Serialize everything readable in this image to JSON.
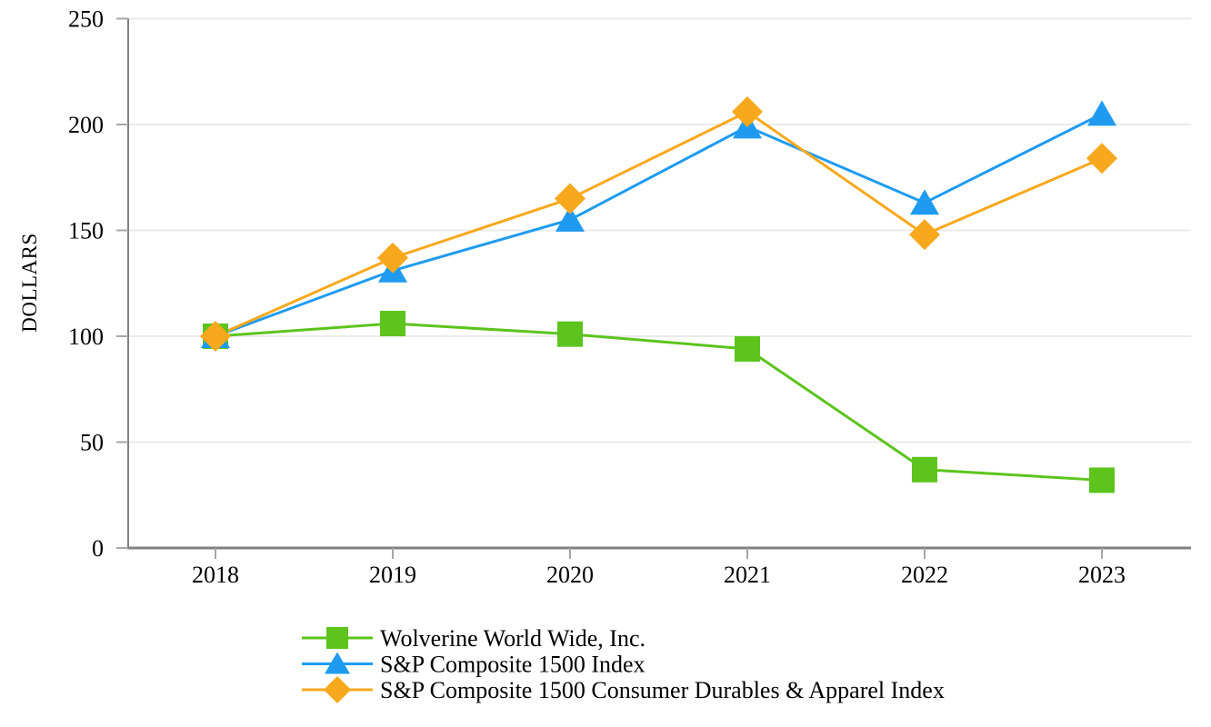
{
  "chart_data": {
    "type": "line",
    "title": "",
    "xlabel": "",
    "ylabel": "DOLLARS",
    "ylim": [
      0,
      250
    ],
    "yticks": [
      0,
      50,
      100,
      150,
      200,
      250
    ],
    "categories": [
      "2018",
      "2019",
      "2020",
      "2021",
      "2022",
      "2023"
    ],
    "grid": "horizontal",
    "legend_position": "bottom-left",
    "series": [
      {
        "name": "Wolverine World Wide, Inc.",
        "slug": "wolverine-world-wide",
        "marker": "square",
        "color": "#5CC41D",
        "values": [
          100,
          106,
          101,
          94,
          37,
          32
        ]
      },
      {
        "name": "S&P Composite 1500 Index",
        "slug": "sp-composite-1500",
        "marker": "triangle",
        "color": "#1E9BF0",
        "values": [
          100,
          131,
          155,
          199,
          163,
          205
        ]
      },
      {
        "name": "S&P Composite 1500 Consumer Durables & Apparel Index",
        "slug": "sp-composite-1500-consumer-durables-apparel",
        "marker": "diamond",
        "color": "#F8A81C",
        "values": [
          100,
          137,
          165,
          206,
          148,
          184
        ]
      }
    ],
    "colors": {
      "axis": "#808080",
      "tick": "#A6A6A6",
      "gridline": "#E8E8E8",
      "text": "#000000",
      "background": "#FFFFFF"
    }
  }
}
